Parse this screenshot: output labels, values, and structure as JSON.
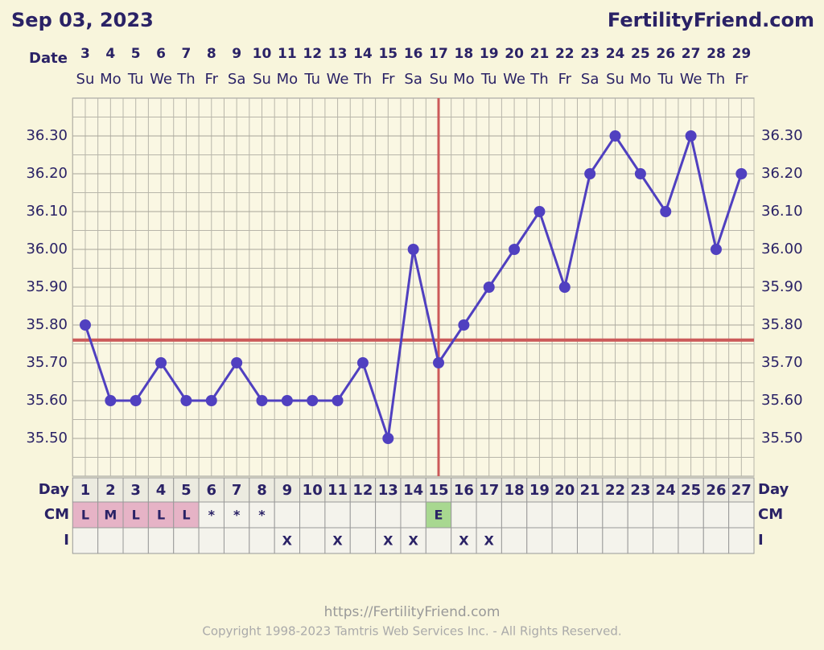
{
  "chart_data": {
    "type": "line",
    "title": "Sep 03, 2023",
    "brand": "FertilityFriend.com",
    "date_label": "Date",
    "dates": [
      3,
      4,
      5,
      6,
      7,
      8,
      9,
      10,
      11,
      12,
      13,
      14,
      15,
      16,
      17,
      18,
      19,
      20,
      21,
      22,
      23,
      24,
      25,
      26,
      27,
      28,
      29
    ],
    "weekdays": [
      "Su",
      "Mo",
      "Tu",
      "We",
      "Th",
      "Fr",
      "Sa",
      "Su",
      "Mo",
      "Tu",
      "We",
      "Th",
      "Fr",
      "Sa",
      "Su",
      "Mo",
      "Tu",
      "We",
      "Th",
      "Fr",
      "Sa",
      "Su",
      "Mo",
      "Tu",
      "We",
      "Th",
      "Fr"
    ],
    "day_label": "Day",
    "days": [
      1,
      2,
      3,
      4,
      5,
      6,
      7,
      8,
      9,
      10,
      11,
      12,
      13,
      14,
      15,
      16,
      17,
      18,
      19,
      20,
      21,
      22,
      23,
      24,
      25,
      26,
      27
    ],
    "values": [
      35.8,
      35.6,
      35.6,
      35.7,
      35.6,
      35.6,
      35.7,
      35.6,
      35.6,
      35.6,
      35.6,
      35.7,
      35.5,
      36.0,
      35.7,
      35.8,
      35.9,
      36.0,
      36.1,
      35.9,
      36.2,
      36.3,
      36.2,
      36.1,
      36.3,
      36.0,
      36.2
    ],
    "color": "#5040c0",
    "coverline": 35.76,
    "ovulation_day": 15,
    "marker_line_color": "#cc5a5a",
    "ylim": [
      35.4,
      36.4
    ],
    "yticks": [
      {
        "value": 35.5,
        "label": "35.50"
      },
      {
        "value": 35.6,
        "label": "35.60"
      },
      {
        "value": 35.7,
        "label": "35.70"
      },
      {
        "value": 35.8,
        "label": "35.80"
      },
      {
        "value": 35.9,
        "label": "35.90"
      },
      {
        "value": 36.0,
        "label": "36.00"
      },
      {
        "value": 36.1,
        "label": "36.10"
      },
      {
        "value": 36.2,
        "label": "36.20"
      },
      {
        "value": 36.3,
        "label": "36.30"
      }
    ],
    "grid": true,
    "cm_label": "CM",
    "cm": [
      "L",
      "M",
      "L",
      "L",
      "L",
      "*",
      "*",
      "*",
      null,
      null,
      null,
      null,
      null,
      null,
      "E",
      null,
      null,
      null,
      null,
      null,
      null,
      null,
      null,
      null,
      null,
      null,
      null
    ],
    "i_label": "I",
    "i": [
      null,
      null,
      null,
      null,
      null,
      null,
      null,
      null,
      "X",
      null,
      "X",
      null,
      "X",
      "X",
      null,
      "X",
      "X",
      null,
      null,
      null,
      null,
      null,
      null,
      null,
      null,
      null,
      null
    ],
    "url": "https://FertilityFriend.com",
    "copyright": "Copyright 1998-2023 Tamtris Web Services Inc. - All Rights Reserved."
  }
}
